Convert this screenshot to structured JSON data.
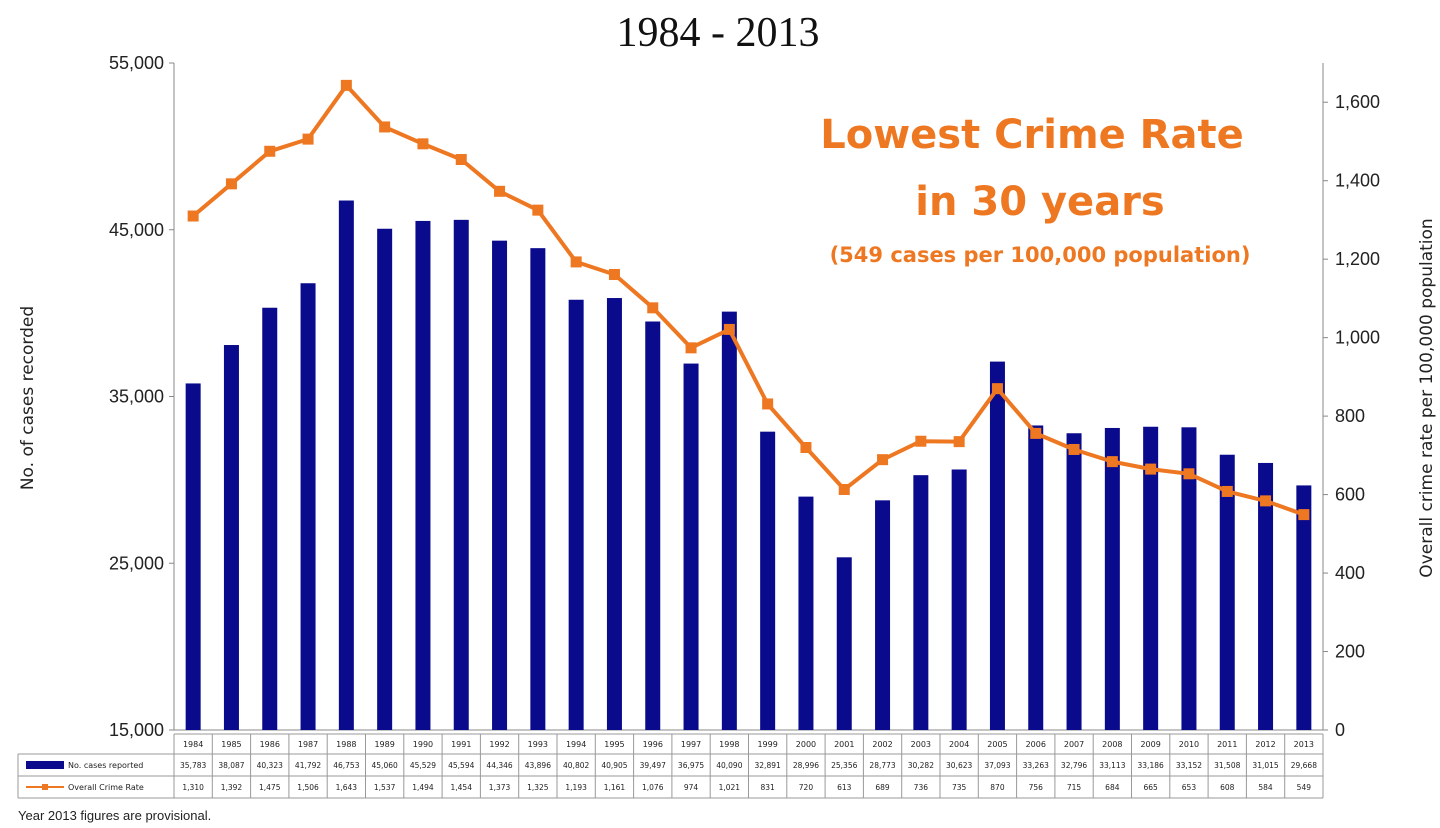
{
  "chart_data": {
    "type": "bar",
    "title": "1984 - 2013",
    "headline": {
      "line1": "Lowest Crime Rate",
      "line2": "in 30 years",
      "line3": "(549 cases per 100,000 population)"
    },
    "ylabel_left": "No. of cases recorded",
    "ylabel_right": "Overall crime rate per 100,000 population",
    "ylim_left": [
      15000,
      55000
    ],
    "yticks_left": [
      "15,000",
      "25,000",
      "35,000",
      "45,000",
      "55,000"
    ],
    "ylim_right": [
      0,
      1700
    ],
    "yticks_right": [
      "0",
      "200",
      "400",
      "600",
      "800",
      "1,000",
      "1,200",
      "1,400",
      "1,600"
    ],
    "grid": false,
    "legend_placement": "data table below x axis",
    "categories": [
      "1984",
      "1985",
      "1986",
      "1987",
      "1988",
      "1989",
      "1990",
      "1991",
      "1992",
      "1993",
      "1994",
      "1995",
      "1996",
      "1997",
      "1998",
      "1999",
      "2000",
      "2001",
      "2002",
      "2003",
      "2004",
      "2005",
      "2006",
      "2007",
      "2008",
      "2009",
      "2010",
      "2011",
      "2012",
      "2013"
    ],
    "series": [
      {
        "name": "No. cases reported",
        "kind": "bar",
        "axis": "left",
        "color": "#0a0a8c",
        "values": [
          35783,
          38087,
          40323,
          41792,
          46753,
          45060,
          45529,
          45594,
          44346,
          43896,
          40802,
          40905,
          39497,
          36975,
          40090,
          32891,
          28996,
          25356,
          28773,
          30282,
          30623,
          37093,
          33263,
          32796,
          33113,
          33186,
          33152,
          31508,
          31015,
          29668
        ],
        "labels": [
          "35,783",
          "38,087",
          "40,323",
          "41,792",
          "46,753",
          "45,060",
          "45,529",
          "45,594",
          "44,346",
          "43,896",
          "40,802",
          "40,905",
          "39,497",
          "36,975",
          "40,090",
          "32,891",
          "28,996",
          "25,356",
          "28,773",
          "30,282",
          "30,623",
          "37,093",
          "33,263",
          "32,796",
          "33,113",
          "33,186",
          "33,152",
          "31,508",
          "31,015",
          "29,668"
        ]
      },
      {
        "name": "Overall Crime Rate",
        "kind": "line",
        "axis": "right",
        "color": "#ee7722",
        "values": [
          1310,
          1392,
          1475,
          1506,
          1643,
          1537,
          1494,
          1454,
          1373,
          1325,
          1193,
          1161,
          1076,
          974,
          1021,
          831,
          720,
          613,
          689,
          736,
          735,
          870,
          756,
          715,
          684,
          665,
          653,
          608,
          584,
          549
        ],
        "labels": [
          "1,310",
          "1,392",
          "1,475",
          "1,506",
          "1,643",
          "1,537",
          "1,494",
          "1,454",
          "1,373",
          "1,325",
          "1,193",
          "1,161",
          "1,076",
          "974",
          "1,021",
          "831",
          "720",
          "613",
          "689",
          "736",
          "735",
          "870",
          "756",
          "715",
          "684",
          "665",
          "653",
          "608",
          "584",
          "549"
        ]
      }
    ],
    "footnote": "Year 2013 figures are provisional."
  }
}
